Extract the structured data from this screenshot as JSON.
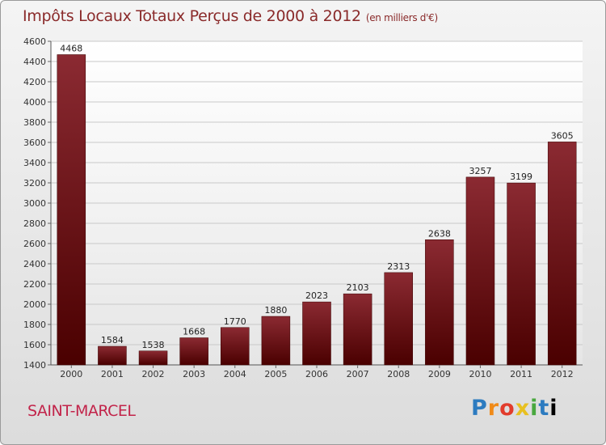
{
  "header": {
    "title": "Impôts Locaux Totaux Perçus de 2000 à 2012",
    "unit": "(en milliers d'€)"
  },
  "footer": {
    "commune": "SAINT-MARCEL",
    "logo_letters": [
      "P",
      "r",
      "o",
      "x",
      "i",
      "t",
      "i"
    ]
  },
  "colors": {
    "bar_top": "#8b2a32",
    "bar_bottom": "#4a0000",
    "title": "#8a2a2a",
    "commune": "#c2244a"
  },
  "chart_data": {
    "type": "bar",
    "title": "Impôts Locaux Totaux Perçus de 2000 à 2012",
    "subtitle": "(en milliers d'€)",
    "xlabel": "",
    "ylabel": "",
    "categories": [
      "2000",
      "2001",
      "2002",
      "2003",
      "2004",
      "2005",
      "2006",
      "2007",
      "2008",
      "2009",
      "2010",
      "2011",
      "2012"
    ],
    "values": [
      4468,
      1584,
      1538,
      1668,
      1770,
      1880,
      2023,
      2103,
      2313,
      2638,
      3257,
      3199,
      3605
    ],
    "data_labels": [
      "4468",
      "1584",
      "1538",
      "1668",
      "1770",
      "1880",
      "2023",
      "2103",
      "2313",
      "2638",
      "3257",
      "3199",
      "3605"
    ],
    "ylim": [
      1400,
      4600
    ],
    "yticks": [
      1400,
      1600,
      1800,
      2000,
      2200,
      2400,
      2600,
      2800,
      3000,
      3200,
      3400,
      3600,
      3800,
      4000,
      4200,
      4400,
      4600
    ],
    "grid": true,
    "legend": "none"
  }
}
